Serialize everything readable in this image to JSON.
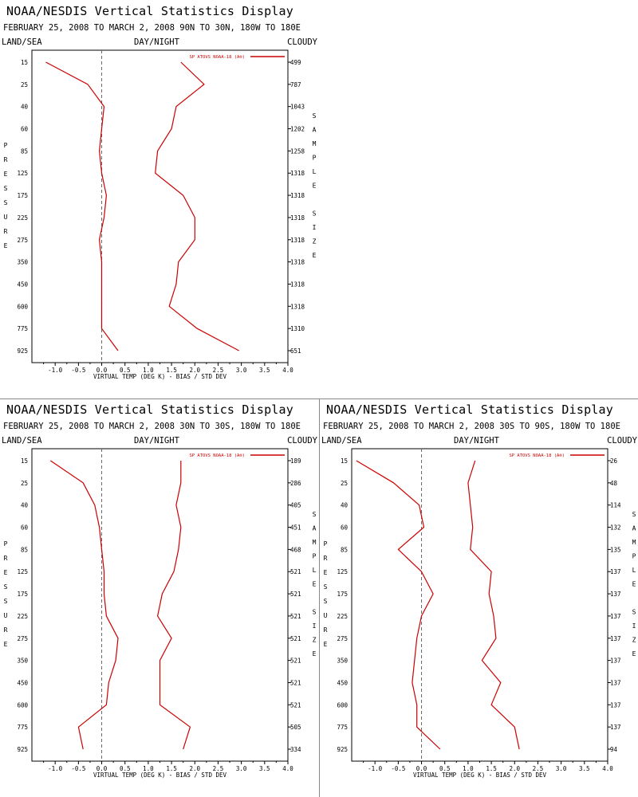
{
  "chart_data": [
    {
      "type": "line",
      "title": "NOAA/NESDIS Vertical Statistics Display",
      "subtitle": "FEBRUARY 25, 2008 TO MARCH 2, 2008 90N TO 30N, 180W TO 180E",
      "header_left": "LAND/SEA",
      "header_center": "DAY/NIGHT",
      "header_right": "CLOUDY",
      "xlabel": "VIRTUAL TEMP (DEG K) - BIAS / STD DEV",
      "ylabel": "PRESSURE",
      "right_label": "SAMPLE SIZE",
      "legend": "SP ATOVS NOAA-18 (A®)",
      "series_color": "#cc0000",
      "xlim": [
        -1.5,
        4.0
      ],
      "x_ticks": [
        "-1.0",
        "-0.5",
        "0.0",
        "0.5",
        "1.0",
        "1.5",
        "2.0",
        "2.5",
        "3.0",
        "3.5",
        "4.0"
      ],
      "pressure_levels": [
        "15",
        "25",
        "40",
        "60",
        "85",
        "125",
        "175",
        "225",
        "275",
        "350",
        "450",
        "600",
        "775",
        "925"
      ],
      "sample_size": [
        "499",
        "787",
        "1043",
        "1202",
        "1258",
        "1318",
        "1318",
        "1318",
        "1318",
        "1318",
        "1318",
        "1318",
        "1310",
        "651"
      ],
      "bias": [
        -1.2,
        -0.3,
        0.05,
        0.0,
        -0.05,
        0.0,
        0.1,
        0.05,
        -0.05,
        0.0,
        0.0,
        0.0,
        0.0,
        0.35
      ],
      "std_dev": [
        1.7,
        2.2,
        1.6,
        1.5,
        1.2,
        1.15,
        1.75,
        2.0,
        2.0,
        1.65,
        1.6,
        1.45,
        2.05,
        2.95
      ]
    },
    {
      "type": "line",
      "title": "NOAA/NESDIS Vertical Statistics Display",
      "subtitle": "FEBRUARY 25, 2008 TO MARCH 2, 2008 30N TO 30S, 180W TO 180E",
      "header_left": "LAND/SEA",
      "header_center": "DAY/NIGHT",
      "header_right": "CLOUDY",
      "xlabel": "VIRTUAL TEMP (DEG K) - BIAS / STD DEV",
      "ylabel": "PRESSURE",
      "right_label": "SAMPLE SIZE",
      "legend": "SP ATOVS NOAA-18 (A®)",
      "series_color": "#cc0000",
      "xlim": [
        -1.5,
        4.0
      ],
      "x_ticks": [
        "-1.0",
        "-0.5",
        "0.0",
        "0.5",
        "1.0",
        "1.5",
        "2.0",
        "2.5",
        "3.0",
        "3.5",
        "4.0"
      ],
      "pressure_levels": [
        "15",
        "25",
        "40",
        "60",
        "85",
        "125",
        "175",
        "225",
        "275",
        "350",
        "450",
        "600",
        "775",
        "925"
      ],
      "sample_size": [
        "189",
        "286",
        "405",
        "451",
        "468",
        "521",
        "521",
        "521",
        "521",
        "521",
        "521",
        "521",
        "505",
        "334"
      ],
      "bias": [
        -1.1,
        -0.4,
        -0.15,
        -0.05,
        0.0,
        0.05,
        0.05,
        0.1,
        0.35,
        0.3,
        0.15,
        0.1,
        -0.5,
        -0.4
      ],
      "std_dev": [
        1.7,
        1.7,
        1.6,
        1.7,
        1.65,
        1.55,
        1.3,
        1.2,
        1.5,
        1.25,
        1.25,
        1.25,
        1.9,
        1.75
      ]
    },
    {
      "type": "line",
      "title": "NOAA/NESDIS Vertical Statistics Display",
      "subtitle": "FEBRUARY 25, 2008 TO MARCH 2, 2008 30S TO 90S, 180W TO 180E",
      "header_left": "LAND/SEA",
      "header_center": "DAY/NIGHT",
      "header_right": "CLOUDY",
      "xlabel": "VIRTUAL TEMP (DEG K) - BIAS / STD DEV",
      "ylabel": "PRESSURE",
      "right_label": "SAMPLE SIZE",
      "legend": "SP ATOVS NOAA-18 (A®)",
      "series_color": "#cc0000",
      "xlim": [
        -1.5,
        4.0
      ],
      "x_ticks": [
        "-1.0",
        "-0.5",
        "0.0",
        "0.5",
        "1.0",
        "1.5",
        "2.0",
        "2.5",
        "3.0",
        "3.5",
        "4.0"
      ],
      "pressure_levels": [
        "15",
        "25",
        "40",
        "60",
        "85",
        "125",
        "175",
        "225",
        "275",
        "350",
        "450",
        "600",
        "775",
        "925"
      ],
      "sample_size": [
        "26",
        "48",
        "114",
        "132",
        "135",
        "137",
        "137",
        "137",
        "137",
        "137",
        "137",
        "137",
        "137",
        "94"
      ],
      "bias": [
        -1.4,
        -0.6,
        -0.05,
        0.05,
        -0.5,
        0.0,
        0.25,
        0.0,
        -0.1,
        -0.15,
        -0.2,
        -0.1,
        -0.1,
        0.4
      ],
      "std_dev": [
        1.15,
        1.0,
        1.05,
        1.1,
        1.05,
        1.5,
        1.45,
        1.55,
        1.6,
        1.3,
        1.7,
        1.5,
        2.0,
        2.1
      ]
    }
  ]
}
